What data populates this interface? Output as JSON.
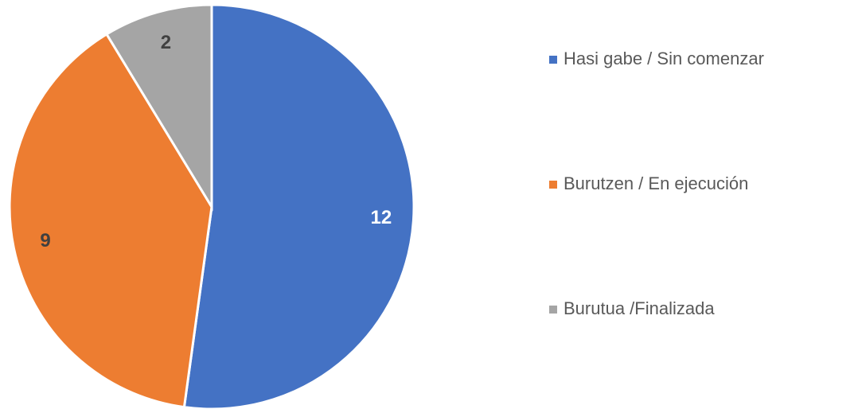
{
  "chart_data": {
    "type": "pie",
    "categories": [
      "Hasi gabe / Sin comenzar",
      "Burutzen / En ejecución",
      "Burutua /Finalizada"
    ],
    "values": [
      12,
      9,
      2
    ],
    "colors": [
      "#4472c4",
      "#ed7d31",
      "#a5a5a5"
    ],
    "label_colors": [
      "#ffffff",
      "#404040",
      "#404040"
    ],
    "legend": "right"
  }
}
